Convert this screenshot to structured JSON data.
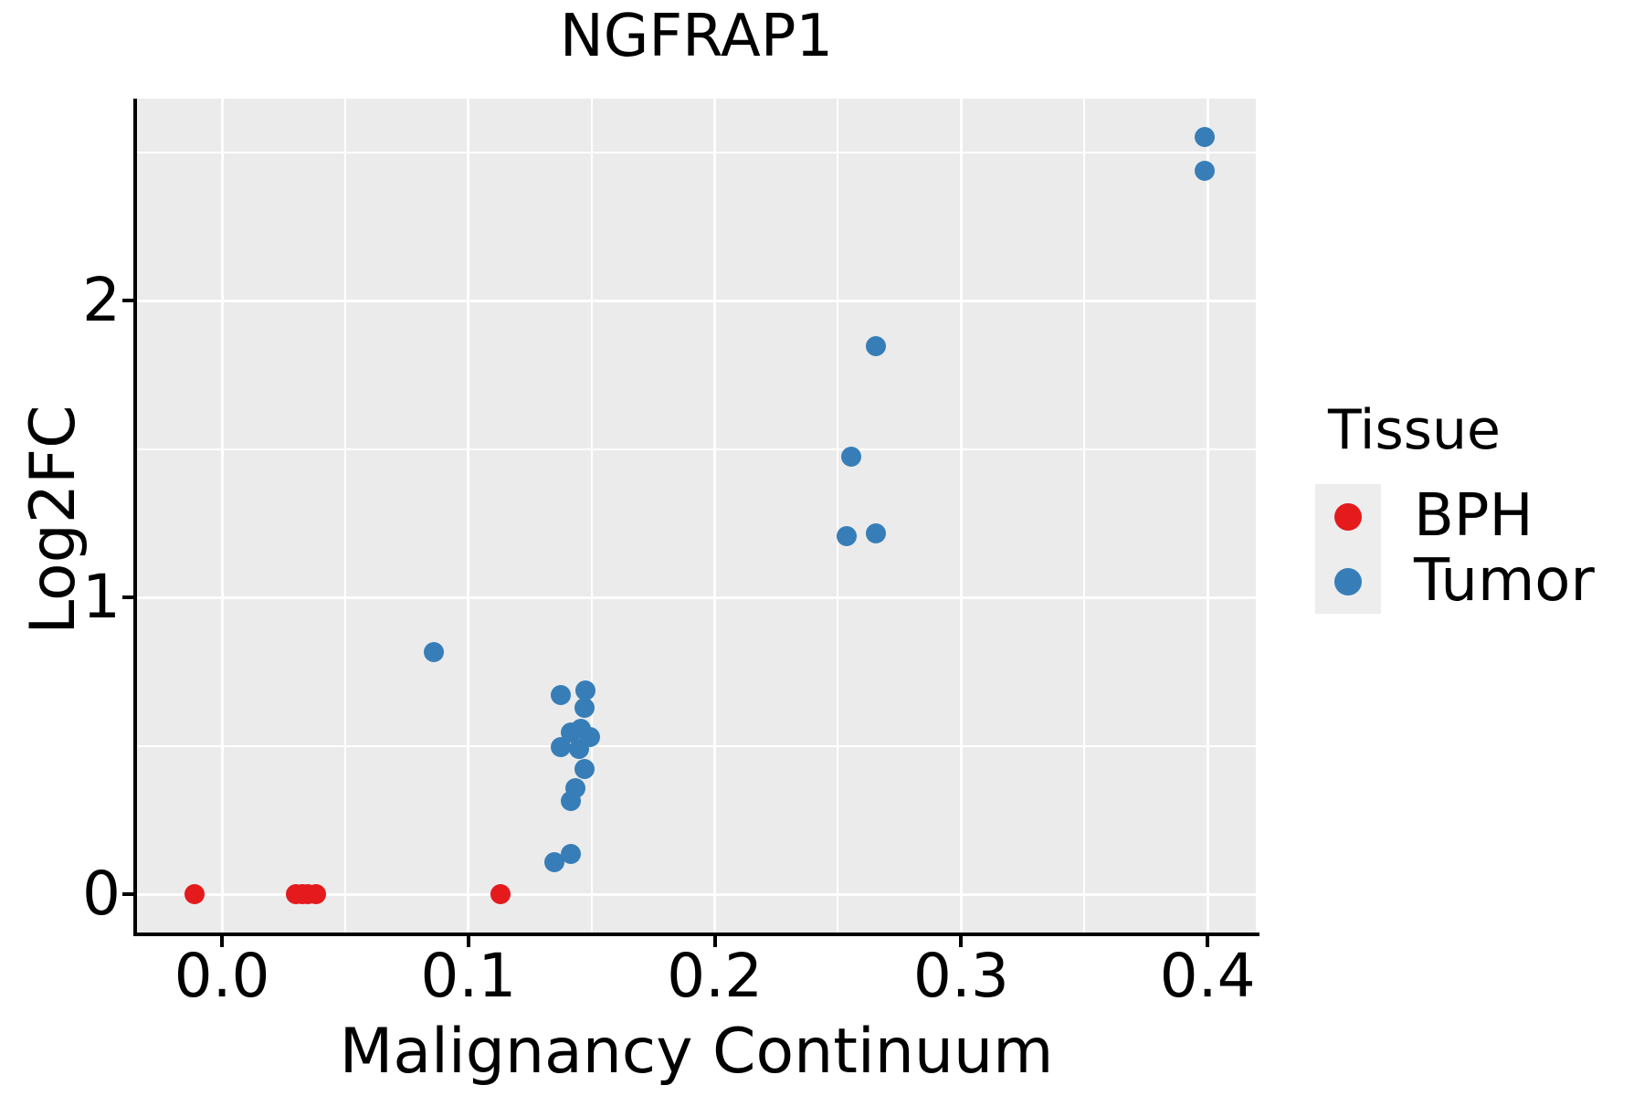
{
  "title": "NGFRAP1",
  "axes": {
    "x_label": "Malignancy Continuum",
    "y_label": "Log2FC"
  },
  "legend": {
    "title": "Tissue",
    "entries": [
      {
        "label": "BPH",
        "color": "#E41A1C"
      },
      {
        "label": "Tumor",
        "color": "#377EB8"
      }
    ]
  },
  "style": {
    "plot_background": "#EBEBEB",
    "grid_color": "#FFFFFF",
    "point_diameter": 22
  },
  "chart_data": {
    "type": "scatter",
    "title": "NGFRAP1",
    "xlabel": "Malignancy Continuum",
    "ylabel": "Log2FC",
    "xlim": [
      -0.0345,
      0.4196
    ],
    "ylim": [
      -0.129,
      2.68
    ],
    "grid": true,
    "legend_position": "right",
    "x_ticks": [
      {
        "label": "0.0",
        "value": 0.0
      },
      {
        "label": "0.1",
        "value": 0.1
      },
      {
        "label": "0.2",
        "value": 0.2
      },
      {
        "label": "0.3",
        "value": 0.3
      },
      {
        "label": "0.4",
        "value": 0.4
      }
    ],
    "x_minor_ticks": [
      0.05,
      0.15,
      0.25,
      0.35
    ],
    "y_ticks": [
      {
        "label": "0",
        "value": 0
      },
      {
        "label": "1",
        "value": 1
      },
      {
        "label": "2",
        "value": 2
      }
    ],
    "y_minor_ticks": [
      0.5,
      1.5,
      2.5
    ],
    "series": [
      {
        "name": "BPH",
        "color": "#E41A1C",
        "points": [
          [
            -0.011,
            0
          ],
          [
            0.03,
            0
          ],
          [
            0.0325,
            0
          ],
          [
            0.035,
            0
          ],
          [
            0.038,
            0
          ],
          [
            0.113,
            0
          ]
        ]
      },
      {
        "name": "Tumor",
        "color": "#377EB8",
        "points": [
          [
            0.086,
            0.817
          ],
          [
            0.399,
            2.552
          ],
          [
            0.399,
            2.436
          ],
          [
            0.2655,
            1.847
          ],
          [
            0.2555,
            1.474
          ],
          [
            0.2535,
            1.205
          ],
          [
            0.2655,
            1.215
          ],
          [
            0.1375,
            0.672
          ],
          [
            0.1475,
            0.685
          ],
          [
            0.147,
            0.628
          ],
          [
            0.1455,
            0.557
          ],
          [
            0.1415,
            0.545
          ],
          [
            0.1495,
            0.53
          ],
          [
            0.1375,
            0.4945
          ],
          [
            0.145,
            0.489
          ],
          [
            0.147,
            0.4225
          ],
          [
            0.1435,
            0.356
          ],
          [
            0.1415,
            0.315
          ],
          [
            0.1415,
            0.135
          ],
          [
            0.135,
            0.108
          ]
        ]
      }
    ]
  }
}
